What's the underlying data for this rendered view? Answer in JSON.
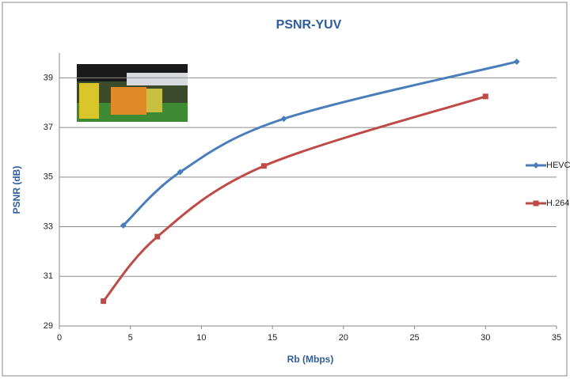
{
  "chart_data": {
    "type": "line",
    "title": "PSNR-YUV",
    "x_label": "Rb (Mbps)",
    "y_label": "PSNR (dB)",
    "xlim": [
      0,
      35
    ],
    "xticks": [
      0,
      5,
      10,
      15,
      20,
      25,
      30,
      35
    ],
    "ylim": [
      29,
      40
    ],
    "yticks": [
      29,
      31,
      33,
      35,
      37,
      39
    ],
    "grid": true,
    "legend": "right",
    "series": [
      {
        "name": "HEVC",
        "color": "#4a7ebb",
        "marker": "diamond",
        "x": [
          4.5,
          8.5,
          15.8,
          32.2
        ],
        "values": [
          33.05,
          35.2,
          37.35,
          39.65
        ]
      },
      {
        "name": "H.264",
        "color": "#be4b48",
        "marker": "square",
        "x": [
          3.1,
          6.9,
          14.4,
          30.0
        ],
        "values": [
          30.0,
          32.6,
          35.45,
          38.25
        ]
      }
    ]
  }
}
